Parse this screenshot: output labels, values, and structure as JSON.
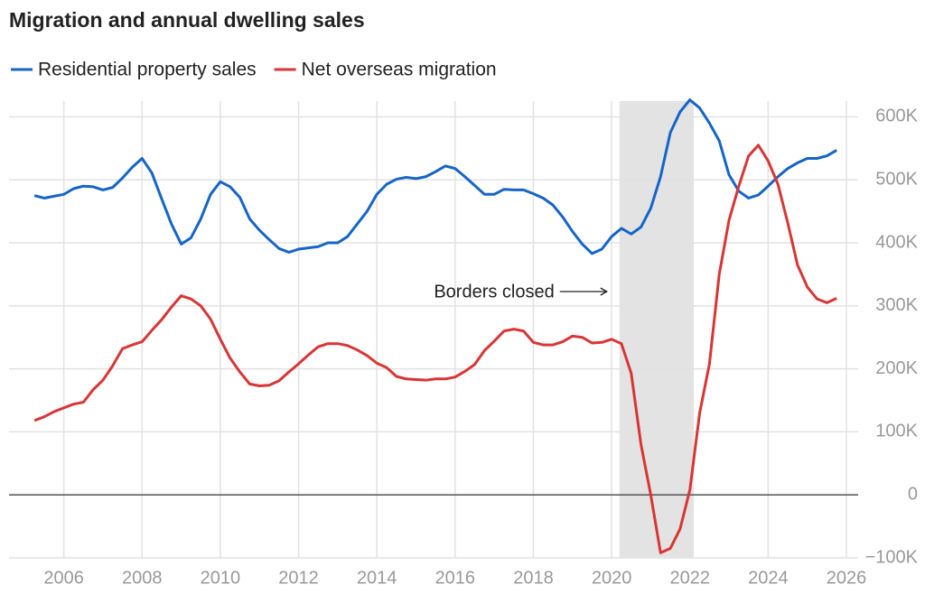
{
  "chart_data": {
    "type": "line",
    "title": "Migration and annual dwelling sales",
    "annotation": "Borders closed",
    "shade": [
      2020.2,
      2022.1
    ],
    "shade_color": "#e3e3e3",
    "legend": "top",
    "grid": true,
    "xlim": [
      2004.6,
      2026.3
    ],
    "xticks": [
      2006,
      2008,
      2010,
      2012,
      2014,
      2016,
      2018,
      2020,
      2022,
      2024,
      2026
    ],
    "ylim": [
      -100000,
      625000
    ],
    "yticks": [
      {
        "value": -100000,
        "label": "−100K"
      },
      0,
      {
        "value": 100000,
        "label": "100K"
      },
      {
        "value": 200000,
        "label": "200K"
      },
      {
        "value": 300000,
        "label": "300K"
      },
      {
        "value": 400000,
        "label": "400K"
      },
      {
        "value": 500000,
        "label": "500K"
      },
      {
        "value": 600000,
        "label": "600K"
      }
    ],
    "x": [
      2005.25,
      2005.5,
      2005.75,
      2006,
      2006.25,
      2006.5,
      2006.75,
      2007,
      2007.25,
      2007.5,
      2007.75,
      2008,
      2008.25,
      2008.5,
      2008.75,
      2009,
      2009.25,
      2009.5,
      2009.75,
      2010,
      2010.25,
      2010.5,
      2010.75,
      2011,
      2011.25,
      2011.5,
      2011.75,
      2012,
      2012.25,
      2012.5,
      2012.75,
      2013,
      2013.25,
      2013.5,
      2013.75,
      2014,
      2014.25,
      2014.5,
      2014.75,
      2015,
      2015.25,
      2015.5,
      2015.75,
      2016,
      2016.25,
      2016.5,
      2016.75,
      2017,
      2017.25,
      2017.5,
      2017.75,
      2018,
      2018.25,
      2018.5,
      2018.75,
      2019,
      2019.25,
      2019.5,
      2019.75,
      2020,
      2020.25,
      2020.5,
      2020.75,
      2021,
      2021.25,
      2021.5,
      2021.75,
      2022,
      2022.25,
      2022.5,
      2022.75,
      2023,
      2023.25,
      2023.5,
      2023.75,
      2024,
      2024.25,
      2024.5,
      2024.75,
      2025,
      2025.25,
      2025.5,
      2025.75
    ],
    "series": [
      {
        "name": "Residential property sales",
        "color": "#1565c8",
        "values": [
          475000,
          471000,
          474000,
          477000,
          486000,
          490000,
          489000,
          484000,
          488000,
          503000,
          520000,
          534000,
          511000,
          470000,
          430000,
          398000,
          408000,
          438000,
          477000,
          497000,
          489000,
          472000,
          438000,
          420000,
          405000,
          391000,
          385000,
          390000,
          392000,
          394000,
          400000,
          400000,
          410000,
          430000,
          450000,
          477000,
          493000,
          501000,
          504000,
          502000,
          505000,
          513000,
          522000,
          518000,
          505000,
          491000,
          477000,
          477000,
          485000,
          484000,
          484000,
          478000,
          471000,
          460000,
          441000,
          418000,
          398000,
          383000,
          390000,
          410000,
          423000,
          414000,
          425000,
          455000,
          505000,
          575000,
          608000,
          627000,
          614000,
          590000,
          562000,
          508000,
          482000,
          471000,
          476000,
          490000,
          505000,
          518000,
          527000,
          534000,
          534000,
          538000,
          547000
        ]
      },
      {
        "name": "Net overseas migration",
        "color": "#d93535",
        "values": [
          118000,
          124000,
          132000,
          138000,
          144000,
          147000,
          167000,
          182000,
          205000,
          232000,
          238000,
          243000,
          261000,
          278000,
          298000,
          316000,
          311000,
          300000,
          279000,
          247000,
          217000,
          195000,
          176000,
          173000,
          174000,
          181000,
          195000,
          208000,
          222000,
          235000,
          240000,
          240000,
          237000,
          230000,
          221000,
          209000,
          202000,
          188000,
          184000,
          183000,
          182000,
          184000,
          184000,
          187000,
          196000,
          207000,
          229000,
          244000,
          260000,
          263000,
          260000,
          242000,
          238000,
          238000,
          243000,
          252000,
          250000,
          241000,
          242000,
          247000,
          240000,
          193000,
          80000,
          0,
          -92000,
          -85000,
          -54000,
          8000,
          130000,
          208000,
          350000,
          436000,
          490000,
          538000,
          555000,
          530000,
          493000,
          432000,
          365000,
          330000,
          311000,
          305000,
          312000
        ]
      }
    ]
  }
}
